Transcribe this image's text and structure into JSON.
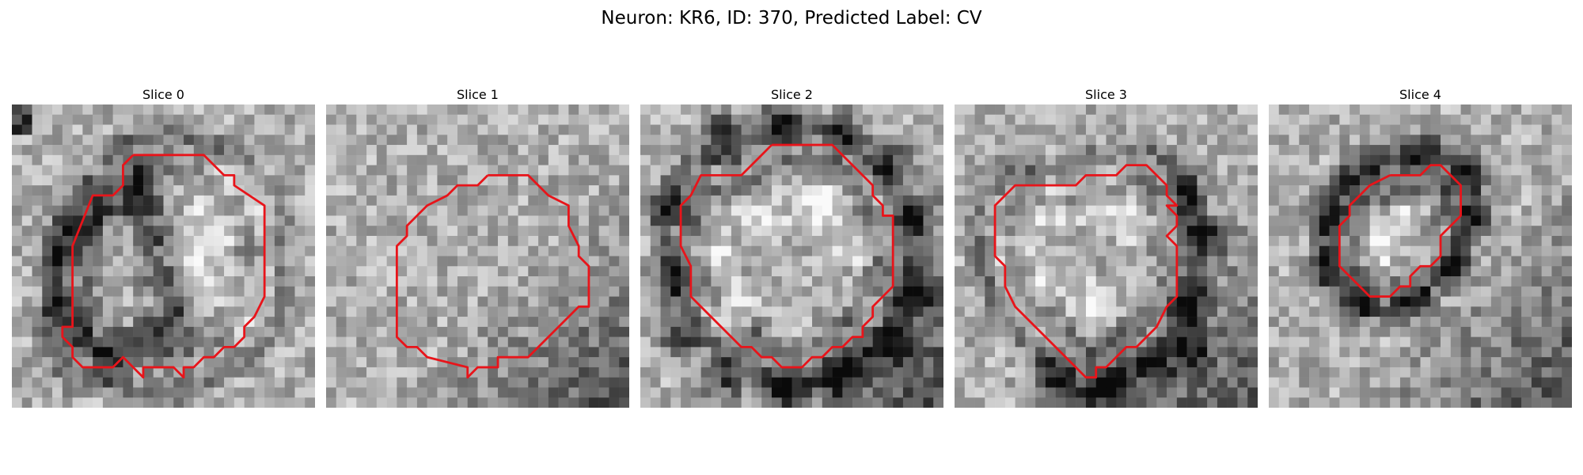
{
  "figure": {
    "title": "Neuron: KR6, ID: 370, Predicted Label: CV"
  },
  "panels": [
    {
      "title": "Slice 0",
      "contour_color": "#e8141a",
      "grid_size": 30,
      "contour": [
        [
          12,
          5
        ],
        [
          19,
          5
        ],
        [
          21,
          7
        ],
        [
          22,
          7
        ],
        [
          22,
          8
        ],
        [
          25,
          10
        ],
        [
          25,
          19
        ],
        [
          24,
          21
        ],
        [
          23,
          22
        ],
        [
          23,
          23
        ],
        [
          22,
          24
        ],
        [
          21,
          24
        ],
        [
          20,
          25
        ],
        [
          19,
          25
        ],
        [
          18,
          26
        ],
        [
          17,
          26
        ],
        [
          17,
          27
        ],
        [
          16,
          26
        ],
        [
          13,
          26
        ],
        [
          13,
          27
        ],
        [
          12,
          26
        ],
        [
          11,
          25
        ],
        [
          10,
          26
        ],
        [
          7,
          26
        ],
        [
          6,
          25
        ],
        [
          6,
          24
        ],
        [
          5,
          23
        ],
        [
          5,
          22
        ],
        [
          6,
          22
        ],
        [
          6,
          14
        ],
        [
          8,
          9
        ],
        [
          10,
          9
        ],
        [
          11,
          8
        ],
        [
          11,
          6
        ],
        [
          12,
          5
        ]
      ],
      "image": {
        "lo": [
          [
            12,
            8
          ],
          [
            13,
            10
          ],
          [
            14,
            13
          ],
          [
            15,
            17
          ],
          [
            16,
            21
          ],
          [
            14,
            23
          ],
          [
            10,
            25
          ],
          [
            6,
            23
          ],
          [
            5,
            20
          ],
          [
            5,
            15
          ],
          [
            6,
            12
          ],
          [
            8,
            10
          ]
        ],
        "hi": [
          [
            18,
            16
          ],
          [
            20,
            12
          ],
          [
            21,
            9
          ],
          [
            22,
            8
          ],
          [
            24,
            11
          ],
          [
            24,
            18
          ],
          [
            23,
            21
          ]
        ],
        "corner": "top-left"
      }
    },
    {
      "title": "Slice 1",
      "contour_color": "#e8141a",
      "grid_size": 30,
      "contour": [
        [
          16,
          7
        ],
        [
          20,
          7
        ],
        [
          22,
          9
        ],
        [
          24,
          10
        ],
        [
          24,
          12
        ],
        [
          25,
          14
        ],
        [
          25,
          15
        ],
        [
          26,
          16
        ],
        [
          26,
          20
        ],
        [
          25,
          20
        ],
        [
          24,
          21
        ],
        [
          23,
          22
        ],
        [
          22,
          23
        ],
        [
          21,
          24
        ],
        [
          20,
          25
        ],
        [
          19,
          25
        ],
        [
          19,
          25
        ],
        [
          17,
          25
        ],
        [
          17,
          26
        ],
        [
          15,
          26
        ],
        [
          14,
          27
        ],
        [
          14,
          26
        ],
        [
          10,
          25
        ],
        [
          9,
          24
        ],
        [
          8,
          24
        ],
        [
          7,
          23
        ],
        [
          7,
          14
        ],
        [
          8,
          13
        ],
        [
          8,
          12
        ],
        [
          9,
          11
        ],
        [
          10,
          10
        ],
        [
          12,
          9
        ],
        [
          13,
          8
        ],
        [
          15,
          8
        ],
        [
          16,
          7
        ]
      ],
      "image": {
        "lo": [],
        "hi": [],
        "corner": "bottom-right"
      }
    },
    {
      "title": "Slice 2",
      "contour_color": "#e8141a",
      "grid_size": 30,
      "contour": [
        [
          13,
          4
        ],
        [
          19,
          4
        ],
        [
          20,
          5
        ],
        [
          21,
          6
        ],
        [
          22,
          7
        ],
        [
          23,
          8
        ],
        [
          23,
          9
        ],
        [
          24,
          10
        ],
        [
          24,
          11
        ],
        [
          25,
          11
        ],
        [
          25,
          18
        ],
        [
          24,
          19
        ],
        [
          23,
          20
        ],
        [
          23,
          21
        ],
        [
          22,
          22
        ],
        [
          22,
          23
        ],
        [
          21,
          23
        ],
        [
          20,
          24
        ],
        [
          19,
          24
        ],
        [
          18,
          25
        ],
        [
          17,
          25
        ],
        [
          16,
          26
        ],
        [
          14,
          26
        ],
        [
          13,
          25
        ],
        [
          12,
          25
        ],
        [
          11,
          24
        ],
        [
          10,
          24
        ],
        [
          9,
          23
        ],
        [
          8,
          22
        ],
        [
          7,
          21
        ],
        [
          6,
          20
        ],
        [
          5,
          19
        ],
        [
          5,
          16
        ],
        [
          4,
          14
        ],
        [
          4,
          10
        ],
        [
          5,
          9
        ],
        [
          6,
          7
        ],
        [
          10,
          7
        ],
        [
          11,
          6
        ],
        [
          12,
          5
        ],
        [
          13,
          4
        ]
      ],
      "image": {
        "lo": [
          [
            8,
            3
          ],
          [
            14,
            2
          ],
          [
            20,
            3
          ],
          [
            25,
            6
          ],
          [
            27,
            11
          ],
          [
            27,
            19
          ],
          [
            25,
            24
          ],
          [
            20,
            27
          ],
          [
            14,
            28
          ],
          [
            8,
            27
          ],
          [
            4,
            23
          ],
          [
            3,
            17
          ],
          [
            3,
            10
          ]
        ],
        "hi": [
          [
            12,
            11
          ],
          [
            18,
            10
          ],
          [
            22,
            14
          ],
          [
            22,
            20
          ],
          [
            16,
            23
          ],
          [
            9,
            20
          ],
          [
            7,
            15
          ]
        ],
        "corner": "bottom-right"
      }
    },
    {
      "title": "Slice 3",
      "contour_color": "#e8141a",
      "grid_size": 30,
      "contour": [
        [
          18,
          6
        ],
        [
          19,
          6
        ],
        [
          20,
          7
        ],
        [
          21,
          8
        ],
        [
          21,
          9
        ],
        [
          22,
          10
        ],
        [
          21,
          10
        ],
        [
          22,
          11
        ],
        [
          22,
          12
        ],
        [
          21,
          13
        ],
        [
          22,
          14
        ],
        [
          22,
          19
        ],
        [
          21,
          20
        ],
        [
          20,
          22
        ],
        [
          19,
          23
        ],
        [
          18,
          24
        ],
        [
          17,
          24
        ],
        [
          16,
          25
        ],
        [
          16,
          25
        ],
        [
          15,
          26
        ],
        [
          14,
          26
        ],
        [
          14,
          27
        ],
        [
          13,
          27
        ],
        [
          10,
          24
        ],
        [
          9,
          23
        ],
        [
          8,
          22
        ],
        [
          7,
          21
        ],
        [
          6,
          20
        ],
        [
          5,
          18
        ],
        [
          5,
          16
        ],
        [
          4,
          15
        ],
        [
          4,
          10
        ],
        [
          5,
          9
        ],
        [
          6,
          8
        ],
        [
          7,
          8
        ],
        [
          8,
          8
        ],
        [
          9,
          8
        ],
        [
          10,
          8
        ],
        [
          11,
          8
        ],
        [
          12,
          8
        ],
        [
          13,
          7
        ],
        [
          14,
          7
        ],
        [
          15,
          7
        ],
        [
          16,
          7
        ],
        [
          17,
          6
        ],
        [
          18,
          6
        ]
      ],
      "image": {
        "lo": [
          [
            23,
            9
          ],
          [
            25,
            13
          ],
          [
            23,
            20
          ],
          [
            20,
            26
          ],
          [
            15,
            28
          ],
          [
            10,
            27
          ],
          [
            23,
            24
          ]
        ],
        "hi": [
          [
            10,
            10
          ],
          [
            15,
            9
          ],
          [
            19,
            12
          ],
          [
            19,
            18
          ],
          [
            14,
            20
          ],
          [
            8,
            18
          ],
          [
            6,
            14
          ]
        ],
        "corner": "bottom-right"
      }
    },
    {
      "title": "Slice 4",
      "contour_color": "#e8141a",
      "grid_size": 30,
      "contour": [
        [
          12,
          7
        ],
        [
          15,
          7
        ],
        [
          16,
          6
        ],
        [
          17,
          6
        ],
        [
          18,
          7
        ],
        [
          19,
          8
        ],
        [
          19,
          11
        ],
        [
          18,
          12
        ],
        [
          17,
          13
        ],
        [
          17,
          15
        ],
        [
          16,
          16
        ],
        [
          15,
          16
        ],
        [
          14,
          17
        ],
        [
          14,
          18
        ],
        [
          13,
          18
        ],
        [
          12,
          19
        ],
        [
          10,
          19
        ],
        [
          9,
          18
        ],
        [
          8,
          17
        ],
        [
          7,
          16
        ],
        [
          7,
          12
        ],
        [
          8,
          11
        ],
        [
          8,
          10
        ],
        [
          9,
          9
        ],
        [
          10,
          8
        ],
        [
          12,
          7
        ]
      ],
      "image": {
        "lo": [
          [
            10,
            6
          ],
          [
            15,
            5
          ],
          [
            19,
            7
          ],
          [
            20,
            11
          ],
          [
            18,
            16
          ],
          [
            14,
            19
          ],
          [
            9,
            19
          ],
          [
            6,
            16
          ],
          [
            6,
            11
          ],
          [
            8,
            8
          ]
        ],
        "hi": [
          [
            11,
            13
          ],
          [
            14,
            12
          ],
          [
            15,
            15
          ],
          [
            12,
            16
          ]
        ],
        "corner": "bottom-right"
      }
    }
  ]
}
